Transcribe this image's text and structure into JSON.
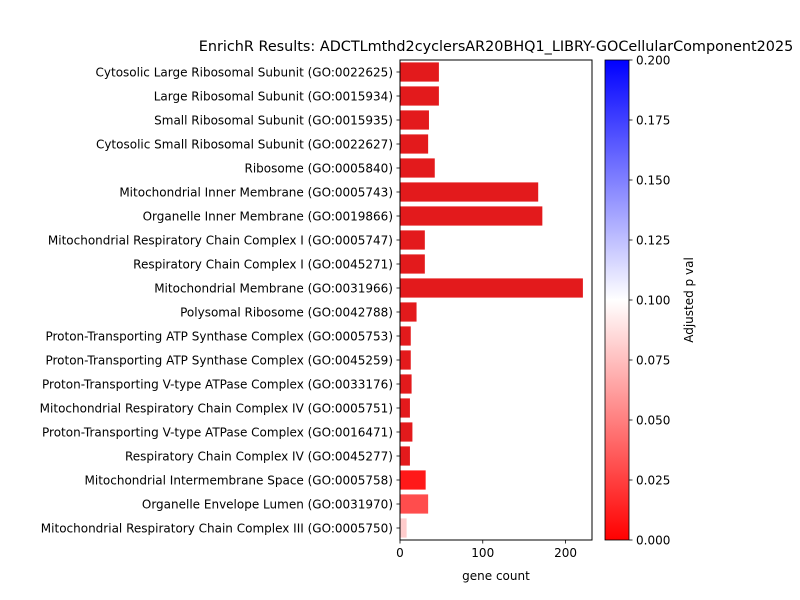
{
  "chart_data": {
    "type": "bar",
    "orientation": "horizontal",
    "title": "EnrichR Results: ADCTLmthd2cyclersAR20BHQ1_LIBRY-GOCellularComponent2025",
    "xlabel": "gene count",
    "ylabel": "",
    "xlim": [
      0,
      232
    ],
    "xticks": [
      0,
      100,
      200
    ],
    "colorbar": {
      "label": "Adjusted p val",
      "range": [
        0.0,
        0.2
      ],
      "ticks": [
        "0.000",
        "0.025",
        "0.050",
        "0.075",
        "0.100",
        "0.125",
        "0.150",
        "0.175",
        "0.200"
      ],
      "colormap": "bwr_r",
      "colors": {
        "low": "#ff0000",
        "mid": "#ffffff",
        "high": "#0000ff"
      }
    },
    "categories": [
      "Cytosolic Large Ribosomal Subunit (GO:0022625)",
      "Large Ribosomal Subunit (GO:0015934)",
      "Small Ribosomal Subunit (GO:0015935)",
      "Cytosolic Small Ribosomal Subunit (GO:0022627)",
      "Ribosome (GO:0005840)",
      "Mitochondrial Inner Membrane (GO:0005743)",
      "Organelle Inner Membrane (GO:0019866)",
      "Mitochondrial Respiratory Chain Complex I (GO:0005747)",
      "Respiratory Chain Complex I (GO:0045271)",
      "Mitochondrial Membrane (GO:0031966)",
      "Polysomal Ribosome (GO:0042788)",
      "Proton-Transporting ATP Synthase Complex (GO:0005753)",
      "Proton-Transporting ATP Synthase Complex (GO:0045259)",
      "Proton-Transporting V-type ATPase Complex (GO:0033176)",
      "Mitochondrial Respiratory Chain Complex IV (GO:0005751)",
      "Proton-Transporting V-type ATPase Complex (GO:0016471)",
      "Respiratory Chain Complex IV (GO:0045277)",
      "Mitochondrial Intermembrane Space (GO:0005758)",
      "Organelle Envelope Lumen (GO:0031970)",
      "Mitochondrial Respiratory Chain Complex III (GO:0005750)"
    ],
    "values": [
      47,
      47,
      35,
      34,
      42,
      167,
      172,
      30,
      30,
      221,
      20,
      13,
      13,
      14,
      12,
      15,
      12,
      31,
      34,
      8
    ],
    "adjusted_p": [
      0.0,
      0.0,
      0.0,
      0.0,
      0.0,
      0.0,
      0.0,
      0.0,
      0.0,
      0.0,
      0.0,
      0.0,
      0.0,
      0.0,
      0.0,
      0.0,
      0.0,
      0.01,
      0.03,
      0.08
    ],
    "grid": false,
    "legend": "none"
  }
}
